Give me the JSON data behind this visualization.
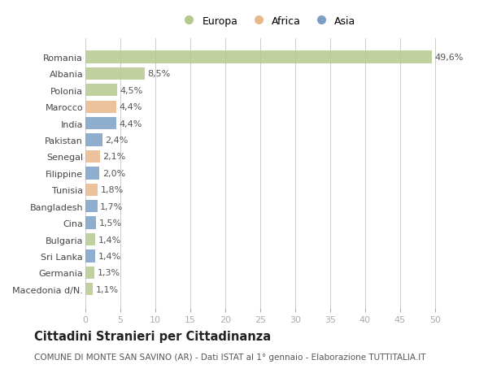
{
  "countries": [
    "Romania",
    "Albania",
    "Polonia",
    "Marocco",
    "India",
    "Pakistan",
    "Senegal",
    "Filippine",
    "Tunisia",
    "Bangladesh",
    "Cina",
    "Bulgaria",
    "Sri Lanka",
    "Germania",
    "Macedonia d/N."
  ],
  "values": [
    49.6,
    8.5,
    4.5,
    4.4,
    4.4,
    2.4,
    2.1,
    2.0,
    1.8,
    1.7,
    1.5,
    1.4,
    1.4,
    1.3,
    1.1
  ],
  "labels": [
    "49,6%",
    "8,5%",
    "4,5%",
    "4,4%",
    "4,4%",
    "2,4%",
    "2,1%",
    "2,0%",
    "1,8%",
    "1,7%",
    "1,5%",
    "1,4%",
    "1,4%",
    "1,3%",
    "1,1%"
  ],
  "continents": [
    "Europa",
    "Europa",
    "Europa",
    "Africa",
    "Asia",
    "Asia",
    "Africa",
    "Asia",
    "Africa",
    "Asia",
    "Asia",
    "Europa",
    "Asia",
    "Europa",
    "Europa"
  ],
  "colors": {
    "Europa": "#b5c98e",
    "Africa": "#e8b88a",
    "Asia": "#7b9fc4"
  },
  "legend_labels": [
    "Europa",
    "Africa",
    "Asia"
  ],
  "xlim": [
    0,
    52
  ],
  "xticks": [
    0,
    5,
    10,
    15,
    20,
    25,
    30,
    35,
    40,
    45,
    50
  ],
  "title_main": "Cittadini Stranieri per Cittadinanza",
  "title_sub": "COMUNE DI MONTE SAN SAVINO (AR) - Dati ISTAT al 1° gennaio - Elaborazione TUTTITALIA.IT",
  "bg_color": "#ffffff",
  "grid_color": "#cccccc",
  "bar_height": 0.75,
  "label_fontsize": 8,
  "tick_fontsize": 8,
  "title_fontsize": 10.5,
  "subtitle_fontsize": 7.5
}
